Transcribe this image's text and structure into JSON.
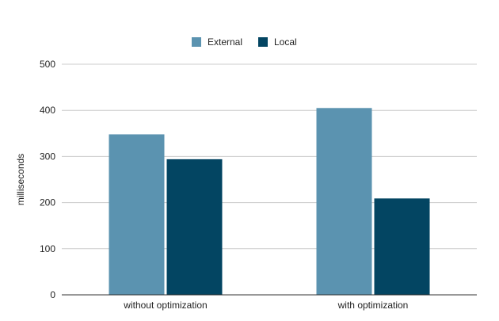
{
  "chart_data": {
    "type": "bar",
    "title": "",
    "xlabel": "",
    "ylabel": "milliseconds",
    "categories": [
      "without optimization",
      "with optimization"
    ],
    "series": [
      {
        "name": "External",
        "values": [
          348,
          405
        ],
        "color": "#5b93b0"
      },
      {
        "name": "Local",
        "values": [
          294,
          209
        ],
        "color": "#034562"
      }
    ],
    "ylim": [
      0,
      500
    ],
    "yticks": [
      "0",
      "100",
      "200",
      "300",
      "400",
      "500"
    ],
    "grid": true,
    "legend_position": "top-center"
  }
}
